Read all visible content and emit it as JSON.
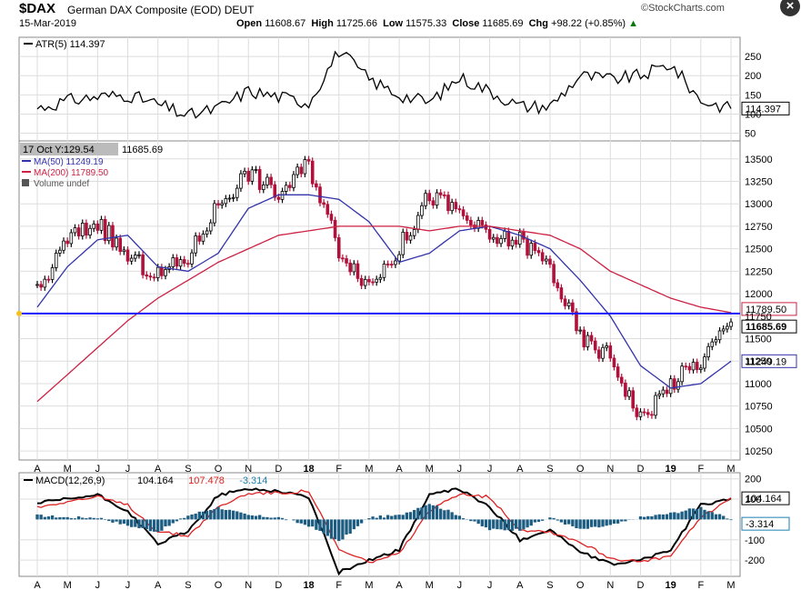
{
  "header": {
    "symbol": "$DAX",
    "name": "German DAX Composite (EOD)",
    "exchange": "DEUT",
    "date": "15-Mar-2019",
    "brand": "StockCharts.com",
    "open_label": "Open",
    "open": "11608.67",
    "high_label": "High",
    "high": "11725.66",
    "low_label": "Low",
    "low": "11575.33",
    "close_label": "Close",
    "close": "11685.69",
    "chg_label": "Chg",
    "chg": "+98.22 (+0.85%)",
    "close_icon": "close-x-icon",
    "up_arrow_icon": "triangle-up-icon"
  },
  "chart_data": [
    {
      "type": "line",
      "name": "atr-panel",
      "legend": "ATR(5) 114.397",
      "current_value": "114.397",
      "ylim": [
        30,
        300
      ],
      "y_ticks": [
        50,
        100,
        150,
        200,
        250
      ],
      "series": [
        {
          "name": "ATR(5)",
          "color": "#000000",
          "x": [
            "A",
            "M",
            "J",
            "J",
            "A",
            "S",
            "O",
            "N",
            "D",
            "18",
            "F",
            "M",
            "A",
            "M",
            "J",
            "J",
            "A",
            "S",
            "O",
            "N",
            "D",
            "19",
            "F",
            "M"
          ],
          "values": [
            115,
            135,
            145,
            150,
            125,
            95,
            115,
            160,
            145,
            130,
            265,
            190,
            150,
            130,
            195,
            160,
            120,
            120,
            200,
            190,
            200,
            230,
            135,
            114
          ]
        }
      ]
    },
    {
      "type": "line",
      "name": "price-panel",
      "ylim": [
        10150,
        13700
      ],
      "y_ticks": [
        10250,
        10500,
        10750,
        11000,
        11250,
        11500,
        11750,
        12000,
        12250,
        12500,
        12750,
        13000,
        13250,
        13500
      ],
      "crosshair_label": "17 Oct Y:129.54",
      "crosshair_value": "11685.69",
      "horizontal_line": 11780,
      "legend": [
        "MA(50) 11249.19",
        "MA(200) 11789.50",
        "Volume undef"
      ],
      "right_labels": {
        "ma200": "11789.50",
        "close": "11685.69",
        "ma50": "11249.19"
      },
      "x": [
        "A",
        "M",
        "J",
        "J",
        "A",
        "S",
        "O",
        "N",
        "D",
        "18",
        "F",
        "M",
        "A",
        "M",
        "J",
        "J",
        "A",
        "S",
        "O",
        "N",
        "D",
        "19",
        "F",
        "M"
      ],
      "series": [
        {
          "name": "Close",
          "color": "#000000",
          "values": [
            12000,
            12600,
            12800,
            12400,
            12200,
            12400,
            13000,
            13350,
            13100,
            13450,
            12500,
            12100,
            12500,
            13100,
            12900,
            12600,
            12600,
            12300,
            11500,
            11300,
            10600,
            11000,
            11250,
            11686
          ]
        },
        {
          "name": "MA(50)",
          "color": "#3333aa",
          "values": [
            11850,
            12300,
            12600,
            12650,
            12300,
            12250,
            12450,
            12950,
            13100,
            13100,
            13050,
            12800,
            12350,
            12450,
            12700,
            12750,
            12650,
            12500,
            12150,
            11750,
            11200,
            10950,
            11000,
            11249
          ]
        },
        {
          "name": "MA(200)",
          "color": "#cc2244",
          "values": [
            10800,
            11100,
            11400,
            11700,
            11950,
            12150,
            12350,
            12500,
            12650,
            12700,
            12750,
            12750,
            12750,
            12700,
            12750,
            12750,
            12700,
            12650,
            12500,
            12250,
            12100,
            11950,
            11850,
            11789
          ]
        }
      ]
    },
    {
      "type": "line",
      "name": "macd-panel",
      "legend_label": "MACD(12,26,9)",
      "legend_values": [
        "104.164",
        "107.478",
        "-3.314"
      ],
      "ylim": [
        -280,
        230
      ],
      "y_ticks": [
        200,
        100,
        -100,
        -200
      ],
      "right_labels": {
        "macd": "104.164",
        "hist": "-3.314"
      },
      "x": [
        "A",
        "M",
        "J",
        "J",
        "A",
        "S",
        "O",
        "N",
        "D",
        "18",
        "F",
        "M",
        "A",
        "M",
        "J",
        "J",
        "A",
        "S",
        "O",
        "N",
        "D",
        "19",
        "F",
        "M"
      ],
      "series": [
        {
          "name": "MACD",
          "color": "#000000",
          "values": [
            80,
            100,
            120,
            40,
            -120,
            -60,
            120,
            150,
            140,
            110,
            -260,
            -200,
            -150,
            120,
            150,
            60,
            -100,
            -50,
            -160,
            -220,
            -200,
            -150,
            70,
            104
          ]
        },
        {
          "name": "Signal",
          "color": "#dd2222",
          "values": [
            60,
            90,
            110,
            70,
            -60,
            -80,
            60,
            130,
            130,
            140,
            -150,
            -210,
            -170,
            40,
            130,
            110,
            -50,
            -60,
            -110,
            -190,
            -210,
            -180,
            10,
            107
          ]
        },
        {
          "name": "Histogram",
          "color": "#1e5d82",
          "values": [
            20,
            10,
            10,
            -30,
            -60,
            20,
            60,
            20,
            10,
            -30,
            -110,
            10,
            20,
            80,
            20,
            -50,
            -50,
            10,
            -50,
            -30,
            10,
            30,
            60,
            -3
          ]
        }
      ]
    }
  ],
  "x_axis": {
    "labels": [
      "A",
      "M",
      "J",
      "J",
      "A",
      "S",
      "O",
      "N",
      "D",
      "18",
      "F",
      "M",
      "A",
      "M",
      "J",
      "J",
      "A",
      "S",
      "O",
      "N",
      "D",
      "19",
      "F",
      "M"
    ]
  }
}
